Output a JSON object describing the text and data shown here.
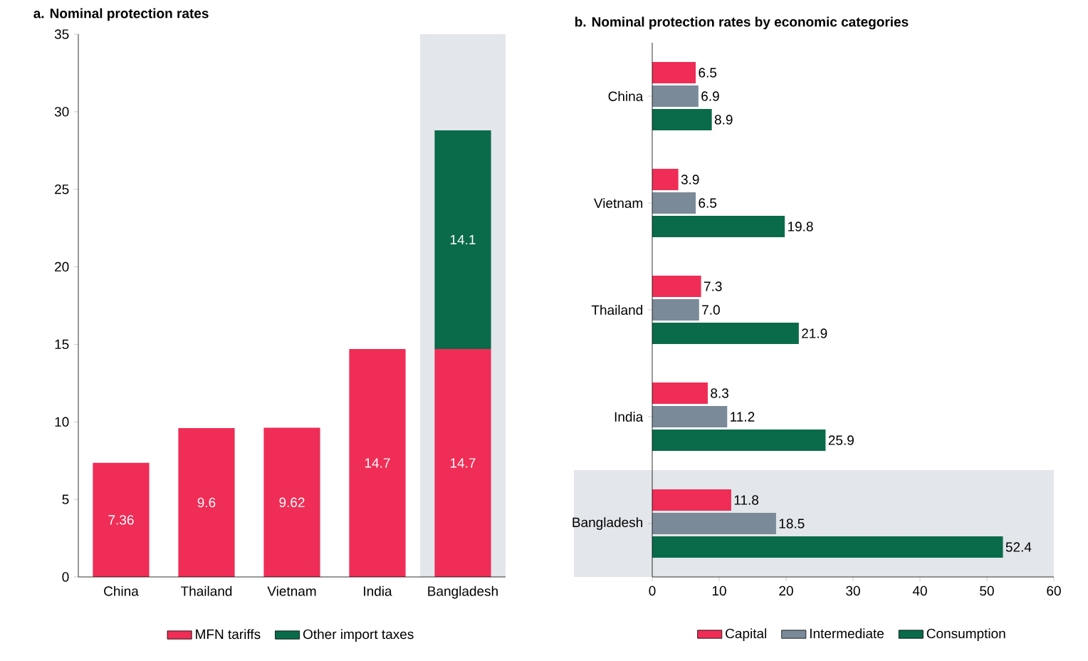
{
  "chart_data": [
    {
      "type": "bar",
      "stacked": true,
      "title": "a. Nominal protection rates",
      "categories": [
        "China",
        "Thailand",
        "Vietnam",
        "India",
        "Bangladesh"
      ],
      "series": [
        {
          "name": "MFN tariffs",
          "color": "#ef2d56",
          "values": [
            7.36,
            9.6,
            9.62,
            14.7,
            14.7
          ]
        },
        {
          "name": "Other import taxes",
          "color": "#0a6b4b",
          "values": [
            null,
            null,
            null,
            null,
            14.1
          ]
        }
      ],
      "ylim": [
        0,
        35
      ],
      "yticks": [
        0,
        5,
        10,
        15,
        20,
        25,
        30,
        35
      ],
      "data_labels": true,
      "legend": "bottom",
      "bands": [
        {
          "axis": "x",
          "from": "Bangladesh",
          "to": "Bangladesh",
          "color": "#e3e6ea"
        }
      ]
    },
    {
      "type": "bar",
      "orientation": "horizontal",
      "title": "b. Nominal protection rates by economic categories",
      "categories": [
        "China",
        "Vietnam",
        "Thailand",
        "India",
        "Bangladesh"
      ],
      "series": [
        {
          "name": "Capital",
          "color": "#ef2d56",
          "values": [
            6.5,
            3.9,
            7.3,
            8.3,
            11.8
          ],
          "value_labels": [
            "6.5",
            "3.9",
            "7.3",
            "8.3",
            "11.8"
          ]
        },
        {
          "name": "Intermediate",
          "color": "#7a8a99",
          "values": [
            6.9,
            6.5,
            7.0,
            11.2,
            18.5
          ],
          "value_labels": [
            "6.9",
            "6.5",
            "7.0",
            "11.2",
            "18.5"
          ]
        },
        {
          "name": "Consumption",
          "color": "#0a6b4b",
          "values": [
            8.9,
            19.8,
            21.9,
            25.9,
            52.4
          ],
          "value_labels": [
            "8.9",
            "19.8",
            "21.9",
            "25.9",
            "52.4"
          ]
        }
      ],
      "xlim": [
        0,
        60
      ],
      "xticks": [
        0,
        10,
        20,
        30,
        40,
        50,
        60
      ],
      "legend": "bottom",
      "bands": [
        {
          "axis": "y",
          "from": "Bangladesh",
          "to": "Bangladesh",
          "color": "#e3e6ea"
        }
      ]
    }
  ]
}
